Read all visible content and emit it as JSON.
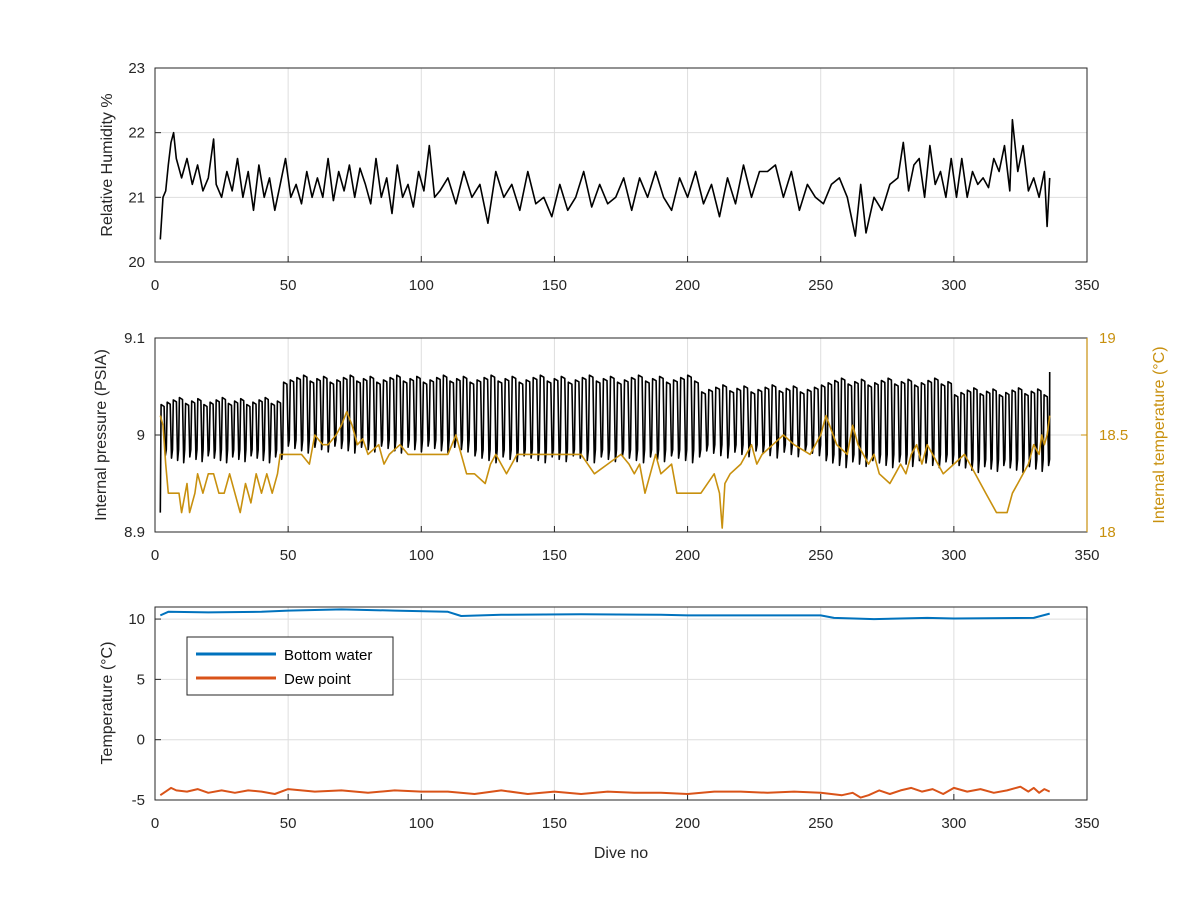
{
  "colors": {
    "black": "#000000",
    "temperature_axis": "#C8900E",
    "bottom_water": "#0072BD",
    "dew_point": "#D95319",
    "grid": "#dedede",
    "axis": "#262626"
  },
  "chart_data": [
    {
      "type": "line",
      "xlabel": "",
      "ylabel": "Relative Humidity %",
      "xlim": [
        0,
        350
      ],
      "ylim": [
        20,
        23
      ],
      "xticks": [
        "0",
        "50",
        "100",
        "150",
        "200",
        "250",
        "300",
        "350"
      ],
      "yticks": [
        "20",
        "21",
        "22",
        "23"
      ],
      "grid": true,
      "series": [
        {
          "color": "#000000",
          "x": [
            2,
            3,
            4,
            5,
            6,
            7,
            8,
            10,
            12,
            14,
            16,
            18,
            20,
            22,
            23,
            25,
            27,
            29,
            31,
            33,
            35,
            37,
            39,
            41,
            43,
            45,
            47,
            49,
            51,
            53,
            55,
            57,
            59,
            61,
            63,
            65,
            67,
            69,
            71,
            73,
            75,
            77,
            79,
            81,
            83,
            85,
            87,
            89,
            91,
            93,
            95,
            97,
            99,
            101,
            103,
            105,
            107,
            110,
            113,
            116,
            119,
            122,
            125,
            128,
            131,
            134,
            137,
            140,
            143,
            146,
            149,
            152,
            155,
            158,
            161,
            164,
            167,
            170,
            173,
            176,
            179,
            182,
            185,
            188,
            191,
            194,
            197,
            200,
            203,
            206,
            209,
            212,
            215,
            218,
            221,
            224,
            227,
            230,
            233,
            236,
            239,
            242,
            245,
            248,
            251,
            254,
            257,
            260,
            263,
            265,
            267,
            270,
            273,
            276,
            279,
            281,
            283,
            285,
            287,
            289,
            291,
            293,
            295,
            297,
            299,
            301,
            303,
            305,
            307,
            309,
            311,
            313,
            315,
            317,
            319,
            321,
            322,
            324,
            326,
            328,
            330,
            332,
            334,
            335,
            336
          ],
          "y": [
            20.35,
            21.0,
            21.1,
            21.5,
            21.85,
            22.0,
            21.6,
            21.3,
            21.6,
            21.2,
            21.5,
            21.1,
            21.3,
            21.9,
            21.2,
            21.0,
            21.4,
            21.1,
            21.6,
            21.0,
            21.4,
            20.8,
            21.5,
            21.0,
            21.3,
            20.8,
            21.2,
            21.6,
            21.0,
            21.2,
            20.9,
            21.4,
            21.0,
            21.3,
            21.0,
            21.6,
            20.95,
            21.4,
            21.1,
            21.5,
            21.0,
            21.45,
            21.2,
            20.9,
            21.6,
            21.0,
            21.3,
            20.75,
            21.5,
            21.0,
            21.2,
            20.85,
            21.4,
            21.1,
            21.8,
            21.0,
            21.1,
            21.3,
            20.9,
            21.4,
            21.0,
            21.2,
            20.6,
            21.4,
            21.0,
            21.2,
            20.8,
            21.4,
            20.9,
            21.0,
            20.7,
            21.2,
            20.8,
            21.0,
            21.4,
            20.85,
            21.2,
            20.9,
            21.0,
            21.3,
            20.8,
            21.3,
            21.0,
            21.4,
            21.0,
            20.8,
            21.3,
            21.0,
            21.4,
            20.9,
            21.2,
            20.7,
            21.3,
            20.9,
            21.5,
            21.0,
            21.4,
            21.4,
            21.5,
            21.0,
            21.4,
            20.8,
            21.2,
            21.0,
            20.9,
            21.2,
            21.3,
            21.0,
            20.4,
            21.2,
            20.45,
            21.0,
            20.8,
            21.2,
            21.3,
            21.85,
            21.1,
            21.5,
            21.6,
            21.0,
            21.8,
            21.2,
            21.4,
            21.0,
            21.6,
            21.0,
            21.6,
            21.0,
            21.4,
            21.2,
            21.3,
            21.15,
            21.6,
            21.4,
            21.8,
            21.1,
            22.2,
            21.4,
            21.8,
            21.1,
            21.3,
            21.0,
            21.4,
            20.55,
            21.3
          ]
        }
      ]
    },
    {
      "type": "line",
      "xlabel": "",
      "ylabel": "Internal pressure (PSIA)",
      "ylabel_right": "Internal temperature (°C)",
      "xlim": [
        0,
        350
      ],
      "ylim": [
        8.9,
        9.1
      ],
      "ylim_right": [
        18,
        19
      ],
      "xticks": [
        "0",
        "50",
        "100",
        "150",
        "200",
        "250",
        "300",
        "350"
      ],
      "yticks": [
        "8.9",
        "9",
        "9.1"
      ],
      "yticks_right": [
        "18",
        "18.5",
        "19"
      ],
      "grid": true,
      "series": [
        {
          "axis": "left",
          "color": "#000000",
          "segments": [
            {
              "x_start": 2,
              "x_end": 48,
              "cycles": 20,
              "high": 9.035,
              "low": 8.975
            },
            {
              "x_start": 48,
              "x_end": 118,
              "cycles": 28,
              "high": 9.058,
              "low": 8.985
            },
            {
              "x_start": 118,
              "x_end": 205,
              "cycles": 33,
              "high": 9.058,
              "low": 8.975
            },
            {
              "x_start": 205,
              "x_end": 250,
              "cycles": 17,
              "high": 9.048,
              "low": 8.98
            },
            {
              "x_start": 250,
              "x_end": 300,
              "cycles": 20,
              "high": 9.055,
              "low": 8.97
            },
            {
              "x_start": 300,
              "x_end": 336,
              "cycles": 15,
              "high": 9.045,
              "low": 8.965
            }
          ],
          "start_value": 8.92,
          "end_value": 9.065
        },
        {
          "axis": "right",
          "color": "#C8900E",
          "x": [
            2,
            3,
            4,
            5,
            6,
            9,
            10,
            12,
            13,
            15,
            16,
            18,
            20,
            22,
            24,
            26,
            28,
            30,
            32,
            34,
            36,
            38,
            40,
            42,
            44,
            46,
            47,
            50,
            55,
            58,
            60,
            63,
            65,
            68,
            70,
            72,
            74,
            76,
            78,
            80,
            84,
            86,
            88,
            92,
            95,
            100,
            110,
            113,
            115,
            117,
            120,
            124,
            126,
            128,
            132,
            136,
            140,
            150,
            160,
            165,
            170,
            175,
            178,
            180,
            182,
            184,
            186,
            188,
            190,
            194,
            196,
            200,
            205,
            210,
            212,
            213,
            214,
            216,
            220,
            224,
            226,
            228,
            232,
            236,
            240,
            246,
            248,
            250,
            252,
            256,
            260,
            262,
            264,
            266,
            268,
            270,
            272,
            276,
            278,
            280,
            282,
            284,
            286,
            288,
            290,
            292,
            296,
            300,
            304,
            308,
            312,
            316,
            320,
            322,
            324,
            326,
            328,
            330,
            332,
            333,
            334,
            335,
            336
          ],
          "y": [
            18.6,
            18.55,
            18.35,
            18.2,
            18.2,
            18.2,
            18.1,
            18.25,
            18.1,
            18.2,
            18.3,
            18.2,
            18.3,
            18.3,
            18.2,
            18.2,
            18.3,
            18.2,
            18.1,
            18.25,
            18.15,
            18.3,
            18.2,
            18.3,
            18.2,
            18.3,
            18.4,
            18.4,
            18.4,
            18.35,
            18.5,
            18.45,
            18.45,
            18.5,
            18.55,
            18.62,
            18.55,
            18.45,
            18.48,
            18.4,
            18.45,
            18.35,
            18.4,
            18.45,
            18.4,
            18.4,
            18.4,
            18.5,
            18.4,
            18.3,
            18.3,
            18.25,
            18.35,
            18.4,
            18.3,
            18.4,
            18.4,
            18.4,
            18.4,
            18.3,
            18.35,
            18.4,
            18.35,
            18.3,
            18.35,
            18.2,
            18.3,
            18.4,
            18.3,
            18.35,
            18.2,
            18.2,
            18.2,
            18.3,
            18.2,
            18.02,
            18.25,
            18.3,
            18.35,
            18.45,
            18.35,
            18.4,
            18.45,
            18.5,
            18.45,
            18.4,
            18.45,
            18.5,
            18.6,
            18.45,
            18.4,
            18.55,
            18.45,
            18.4,
            18.35,
            18.4,
            18.3,
            18.25,
            18.3,
            18.35,
            18.3,
            18.4,
            18.45,
            18.35,
            18.45,
            18.4,
            18.3,
            18.35,
            18.4,
            18.3,
            18.2,
            18.1,
            18.1,
            18.2,
            18.25,
            18.3,
            18.35,
            18.45,
            18.4,
            18.5,
            18.45,
            18.5,
            18.6
          ]
        }
      ]
    },
    {
      "type": "line",
      "xlabel": "Dive no",
      "ylabel": "Temperature (°C)",
      "xlim": [
        0,
        350
      ],
      "ylim": [
        -5,
        11
      ],
      "xticks": [
        "0",
        "50",
        "100",
        "150",
        "200",
        "250",
        "300",
        "350"
      ],
      "yticks": [
        "-5",
        "0",
        "5",
        "10"
      ],
      "grid": true,
      "legend": "top-left",
      "series": [
        {
          "name": "Bottom water",
          "color": "#0072BD",
          "x": [
            2,
            5,
            20,
            40,
            50,
            70,
            90,
            110,
            115,
            130,
            160,
            190,
            200,
            230,
            250,
            255,
            270,
            290,
            300,
            330,
            336
          ],
          "y": [
            10.3,
            10.6,
            10.55,
            10.6,
            10.7,
            10.8,
            10.7,
            10.6,
            10.25,
            10.35,
            10.4,
            10.35,
            10.3,
            10.3,
            10.3,
            10.1,
            10.0,
            10.1,
            10.05,
            10.1,
            10.45
          ]
        },
        {
          "name": "Dew point",
          "color": "#D95319",
          "x": [
            2,
            4,
            6,
            8,
            12,
            16,
            20,
            25,
            30,
            35,
            40,
            45,
            50,
            60,
            70,
            80,
            90,
            100,
            110,
            120,
            130,
            140,
            150,
            160,
            170,
            180,
            190,
            200,
            210,
            220,
            230,
            240,
            250,
            258,
            262,
            265,
            268,
            272,
            276,
            280,
            284,
            288,
            292,
            296,
            300,
            305,
            310,
            315,
            320,
            325,
            328,
            330,
            332,
            334,
            336
          ],
          "y": [
            -4.6,
            -4.3,
            -4.0,
            -4.2,
            -4.3,
            -4.1,
            -4.4,
            -4.2,
            -4.4,
            -4.2,
            -4.3,
            -4.5,
            -4.1,
            -4.3,
            -4.2,
            -4.4,
            -4.2,
            -4.3,
            -4.3,
            -4.5,
            -4.2,
            -4.5,
            -4.3,
            -4.5,
            -4.3,
            -4.4,
            -4.4,
            -4.5,
            -4.3,
            -4.3,
            -4.4,
            -4.3,
            -4.4,
            -4.6,
            -4.4,
            -4.8,
            -4.6,
            -4.2,
            -4.5,
            -4.2,
            -4.0,
            -4.3,
            -4.1,
            -4.5,
            -4.0,
            -4.3,
            -4.1,
            -4.4,
            -4.2,
            -3.9,
            -4.3,
            -4.0,
            -4.4,
            -4.1,
            -4.3
          ]
        }
      ]
    }
  ]
}
